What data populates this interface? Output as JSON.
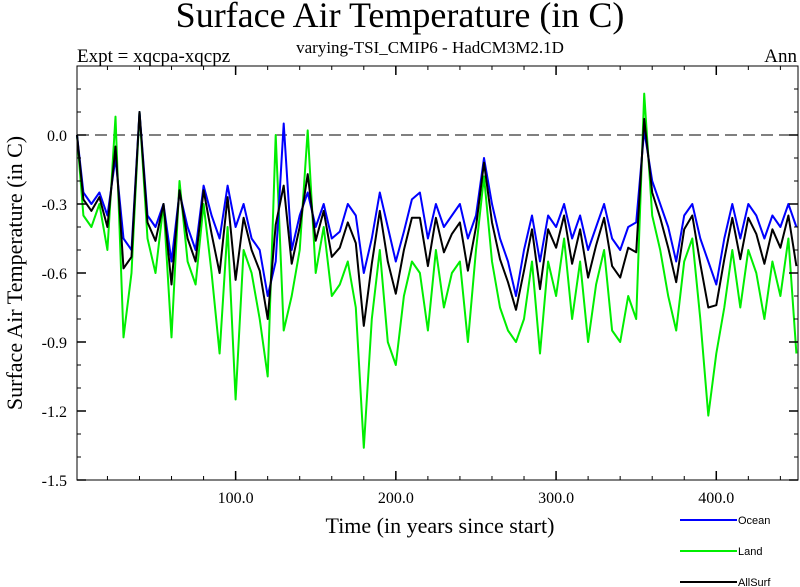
{
  "chart_data": {
    "type": "line",
    "title": "Surface Air Temperature (in C)",
    "subtitle_left": "Expt = xqcpa-xqcpz",
    "subtitle_center": "varying-TSI_CMIP6 - HadCM3M2.1D",
    "subtitle_right": "Ann",
    "xlabel": "Time (in years since start)",
    "ylabel": "Surface Air Temperature (in C)",
    "xlim": [
      1,
      451
    ],
    "ylim": [
      -1.5,
      0.3
    ],
    "xticks": [
      100,
      200,
      300,
      400
    ],
    "xtick_labels": [
      "100.0",
      "200.0",
      "300.0",
      "400.0"
    ],
    "yticks": [
      0.0,
      -0.3,
      -0.6,
      -0.9,
      -1.2,
      -1.5
    ],
    "ytick_labels": [
      "0.0",
      "-0.3",
      "-0.6",
      "-0.9",
      "-1.2",
      "-1.5"
    ],
    "reference_line": 0.0,
    "grid": false,
    "legend_placement": "bottom-right",
    "x": [
      1,
      5,
      10,
      15,
      20,
      25,
      30,
      35,
      40,
      45,
      50,
      55,
      60,
      65,
      70,
      75,
      80,
      85,
      90,
      95,
      100,
      105,
      110,
      115,
      120,
      125,
      130,
      135,
      140,
      145,
      150,
      155,
      160,
      165,
      170,
      175,
      180,
      185,
      190,
      195,
      200,
      205,
      210,
      215,
      220,
      225,
      230,
      235,
      240,
      245,
      250,
      255,
      260,
      265,
      270,
      275,
      280,
      285,
      290,
      295,
      300,
      305,
      310,
      315,
      320,
      325,
      330,
      335,
      340,
      345,
      350,
      355,
      360,
      365,
      370,
      375,
      380,
      385,
      390,
      395,
      400,
      405,
      410,
      415,
      420,
      425,
      430,
      435,
      440,
      445,
      450
    ],
    "series": [
      {
        "name": "Ocean",
        "color": "#0000ff",
        "values": [
          0.0,
          -0.25,
          -0.3,
          -0.25,
          -0.35,
          -0.1,
          -0.45,
          -0.5,
          0.1,
          -0.35,
          -0.4,
          -0.3,
          -0.55,
          -0.25,
          -0.4,
          -0.5,
          -0.22,
          -0.35,
          -0.45,
          -0.22,
          -0.4,
          -0.3,
          -0.45,
          -0.5,
          -0.7,
          -0.55,
          0.05,
          -0.5,
          -0.35,
          -0.25,
          -0.4,
          -0.3,
          -0.45,
          -0.42,
          -0.3,
          -0.35,
          -0.6,
          -0.45,
          -0.25,
          -0.4,
          -0.55,
          -0.42,
          -0.28,
          -0.25,
          -0.45,
          -0.3,
          -0.4,
          -0.35,
          -0.3,
          -0.45,
          -0.35,
          -0.1,
          -0.3,
          -0.45,
          -0.55,
          -0.7,
          -0.5,
          -0.35,
          -0.55,
          -0.35,
          -0.4,
          -0.3,
          -0.45,
          -0.35,
          -0.5,
          -0.4,
          -0.3,
          -0.45,
          -0.5,
          -0.4,
          -0.38,
          0.02,
          -0.2,
          -0.3,
          -0.4,
          -0.55,
          -0.35,
          -0.3,
          -0.45,
          -0.55,
          -0.65,
          -0.45,
          -0.3,
          -0.45,
          -0.3,
          -0.35,
          -0.45,
          -0.35,
          -0.4,
          -0.3,
          -0.4
        ]
      },
      {
        "name": "Land",
        "color": "#00ee00",
        "values": [
          0.0,
          -0.35,
          -0.4,
          -0.3,
          -0.5,
          0.08,
          -0.88,
          -0.6,
          0.1,
          -0.45,
          -0.6,
          -0.3,
          -0.88,
          -0.2,
          -0.55,
          -0.65,
          -0.3,
          -0.6,
          -0.95,
          -0.4,
          -1.15,
          -0.5,
          -0.6,
          -0.8,
          -1.05,
          0.0,
          -0.85,
          -0.7,
          -0.5,
          0.02,
          -0.6,
          -0.4,
          -0.7,
          -0.65,
          -0.55,
          -0.75,
          -1.36,
          -0.8,
          -0.5,
          -0.9,
          -1.0,
          -0.7,
          -0.55,
          -0.6,
          -0.85,
          -0.5,
          -0.75,
          -0.6,
          -0.55,
          -0.9,
          -0.5,
          -0.18,
          -0.55,
          -0.75,
          -0.85,
          -0.9,
          -0.8,
          -0.55,
          -0.95,
          -0.55,
          -0.7,
          -0.45,
          -0.8,
          -0.55,
          -0.9,
          -0.65,
          -0.5,
          -0.85,
          -0.9,
          -0.7,
          -0.8,
          0.18,
          -0.35,
          -0.5,
          -0.7,
          -0.85,
          -0.55,
          -0.45,
          -0.8,
          -1.22,
          -0.95,
          -0.75,
          -0.5,
          -0.75,
          -0.5,
          -0.6,
          -0.8,
          -0.55,
          -0.7,
          -0.45,
          -0.95
        ]
      },
      {
        "name": "AllSurf",
        "color": "#000000",
        "values": [
          0.0,
          -0.28,
          -0.33,
          -0.27,
          -0.4,
          -0.05,
          -0.58,
          -0.53,
          0.1,
          -0.38,
          -0.46,
          -0.3,
          -0.65,
          -0.24,
          -0.45,
          -0.55,
          -0.24,
          -0.43,
          -0.6,
          -0.27,
          -0.63,
          -0.36,
          -0.5,
          -0.59,
          -0.8,
          -0.39,
          -0.22,
          -0.56,
          -0.4,
          -0.17,
          -0.46,
          -0.33,
          -0.53,
          -0.49,
          -0.38,
          -0.47,
          -0.83,
          -0.56,
          -0.33,
          -0.55,
          -0.69,
          -0.5,
          -0.36,
          -0.36,
          -0.57,
          -0.36,
          -0.51,
          -0.43,
          -0.38,
          -0.59,
          -0.4,
          -0.12,
          -0.38,
          -0.54,
          -0.64,
          -0.76,
          -0.59,
          -0.41,
          -0.67,
          -0.41,
          -0.49,
          -0.35,
          -0.56,
          -0.41,
          -0.62,
          -0.48,
          -0.36,
          -0.57,
          -0.62,
          -0.49,
          -0.51,
          0.07,
          -0.25,
          -0.36,
          -0.49,
          -0.64,
          -0.41,
          -0.35,
          -0.56,
          -0.75,
          -0.74,
          -0.54,
          -0.36,
          -0.54,
          -0.36,
          -0.43,
          -0.56,
          -0.41,
          -0.49,
          -0.35,
          -0.57
        ]
      }
    ]
  }
}
